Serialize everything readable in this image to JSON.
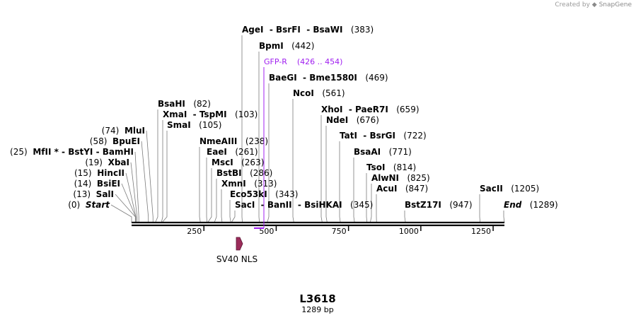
{
  "credit": {
    "prefix": "Created by",
    "brand": "SnapGene"
  },
  "map": {
    "name": "L3618",
    "length_label": "1289 bp",
    "length_bp": 1289,
    "ticks": [
      "250",
      "500",
      "750",
      "1000",
      "1250"
    ],
    "feature": {
      "label": "SV40 NLS",
      "color": "#9b2c5a"
    },
    "primer": {
      "name": "GFP-R",
      "range": "(426 .. 454)",
      "color": "#a020f0"
    },
    "sites": [
      {
        "names": [
          "AgeI",
          "BsrFI",
          "BsaWI"
        ],
        "pos": "(383)",
        "bp": 383
      },
      {
        "names": [
          "BpmI"
        ],
        "pos": "(442)",
        "bp": 442
      },
      {
        "names": [
          "BaeGI",
          "Bme1580I"
        ],
        "pos": "(469)",
        "bp": 469
      },
      {
        "names": [
          "NcoI"
        ],
        "pos": "(561)",
        "bp": 561
      },
      {
        "names": [
          "XhoI",
          "PaeR7I"
        ],
        "pos": "(659)",
        "bp": 659
      },
      {
        "names": [
          "NdeI"
        ],
        "pos": "(676)",
        "bp": 676
      },
      {
        "names": [
          "TatI",
          "BsrGI"
        ],
        "pos": "(722)",
        "bp": 722
      },
      {
        "names": [
          "BsaAI"
        ],
        "pos": "(771)",
        "bp": 771
      },
      {
        "names": [
          "TsoI"
        ],
        "pos": "(814)",
        "bp": 814
      },
      {
        "names": [
          "AlwNI"
        ],
        "pos": "(825)",
        "bp": 825
      },
      {
        "names": [
          "AcuI"
        ],
        "pos": "(847)",
        "bp": 847
      },
      {
        "names": [
          "BstZ17I"
        ],
        "pos": "(947)",
        "bp": 947
      },
      {
        "names": [
          "SacII"
        ],
        "pos": "(1205)",
        "bp": 1205
      },
      {
        "names": [
          "End"
        ],
        "pos": "(1289)",
        "bp": 1289,
        "italic": true
      },
      {
        "names": [
          "BsaHI"
        ],
        "pos": "(82)",
        "bp": 82
      },
      {
        "names": [
          "XmaI",
          "TspMI"
        ],
        "pos": "(103)",
        "bp": 103
      },
      {
        "names": [
          "SmaI"
        ],
        "pos": "(105)",
        "bp": 105
      },
      {
        "names": [
          "MluI"
        ],
        "pos": "(74)",
        "bp": 74
      },
      {
        "names": [
          "BpuEI"
        ],
        "pos": "(58)",
        "bp": 58
      },
      {
        "names": [
          "MfII *",
          "BstYI",
          "BamHI"
        ],
        "pos": "(25)",
        "bp": 25
      },
      {
        "names": [
          "XbaI"
        ],
        "pos": "(19)",
        "bp": 19
      },
      {
        "names": [
          "HincII"
        ],
        "pos": "(15)",
        "bp": 15
      },
      {
        "names": [
          "BsiEI"
        ],
        "pos": "(14)",
        "bp": 14
      },
      {
        "names": [
          "SalI"
        ],
        "pos": "(13)",
        "bp": 13
      },
      {
        "names": [
          "Start"
        ],
        "pos": "(0)",
        "bp": 0,
        "italic": true
      },
      {
        "names": [
          "NmeAIII"
        ],
        "pos": "(238)",
        "bp": 238
      },
      {
        "names": [
          "EaeI"
        ],
        "pos": "(261)",
        "bp": 261
      },
      {
        "names": [
          "MscI"
        ],
        "pos": "(263)",
        "bp": 263
      },
      {
        "names": [
          "BstBI"
        ],
        "pos": "(286)",
        "bp": 286
      },
      {
        "names": [
          "XmnI"
        ],
        "pos": "(313)",
        "bp": 313
      },
      {
        "names": [
          "Eco53kI"
        ],
        "pos": "(343)",
        "bp": 343
      },
      {
        "names": [
          "SacI",
          "BanII",
          "BsiHKAI"
        ],
        "pos": "(345)",
        "bp": 345
      }
    ]
  }
}
